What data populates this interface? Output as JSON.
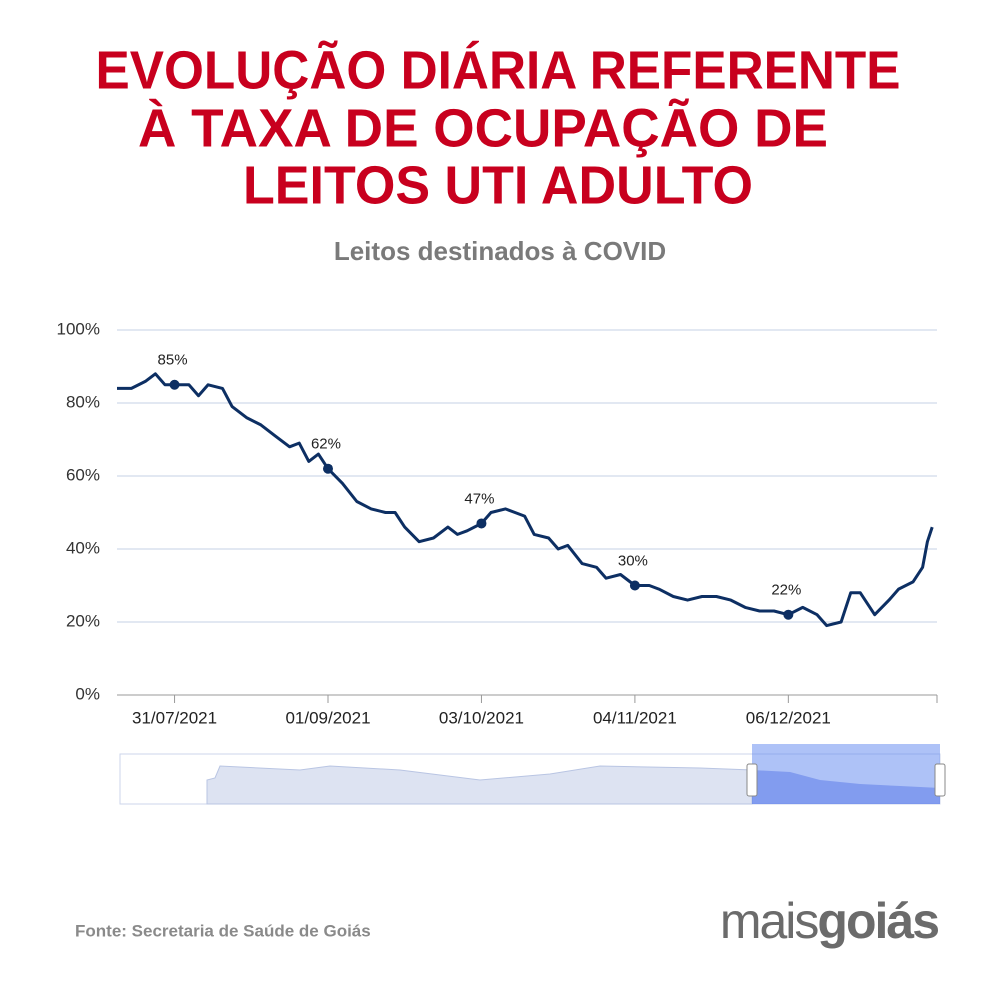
{
  "chart_data": {
    "type": "line",
    "title": [
      "EVOLUÇÃO DIÁRIA REFERENTE",
      "À TAXA DE OCUPAÇÃO DE",
      "LEITOS UTI ADULTO"
    ],
    "subtitle": "Leitos destinados à COVID",
    "color": "#0d2f63",
    "x": [
      "19/07/2021",
      "22/07/2021",
      "25/07/2021",
      "27/07/2021",
      "29/07/2021",
      "31/07/2021",
      "03/08/2021",
      "05/08/2021",
      "07/08/2021",
      "10/08/2021",
      "12/08/2021",
      "15/08/2021",
      "18/08/2021",
      "21/08/2021",
      "24/08/2021",
      "26/08/2021",
      "28/08/2021",
      "30/08/2021",
      "01/09/2021",
      "04/09/2021",
      "07/09/2021",
      "10/09/2021",
      "13/09/2021",
      "15/09/2021",
      "17/09/2021",
      "20/09/2021",
      "23/09/2021",
      "26/09/2021",
      "28/09/2021",
      "30/09/2021",
      "03/10/2021",
      "05/10/2021",
      "08/10/2021",
      "10/10/2021",
      "12/10/2021",
      "14/10/2021",
      "17/10/2021",
      "19/10/2021",
      "21/10/2021",
      "24/10/2021",
      "27/10/2021",
      "29/10/2021",
      "01/11/2021",
      "04/11/2021",
      "07/11/2021",
      "09/11/2021",
      "12/11/2021",
      "15/11/2021",
      "18/11/2021",
      "21/11/2021",
      "24/11/2021",
      "27/11/2021",
      "30/11/2021",
      "03/12/2021",
      "06/12/2021",
      "09/12/2021",
      "12/12/2021",
      "14/12/2021",
      "17/12/2021",
      "19/12/2021",
      "21/12/2021",
      "24/12/2021",
      "27/12/2021",
      "29/12/2021",
      "01/01/2022",
      "03/01/2022",
      "04/01/2022",
      "05/01/2022"
    ],
    "values": [
      84,
      84,
      86,
      88,
      85,
      85,
      85,
      82,
      85,
      84,
      79,
      76,
      74,
      71,
      68,
      69,
      64,
      66,
      62,
      58,
      53,
      51,
      50,
      50,
      46,
      42,
      43,
      46,
      44,
      45,
      47,
      50,
      51,
      50,
      49,
      44,
      43,
      40,
      41,
      36,
      35,
      32,
      33,
      30,
      30,
      29,
      27,
      26,
      27,
      27,
      26,
      24,
      23,
      23,
      22,
      24,
      22,
      19,
      20,
      28,
      28,
      22,
      26,
      29,
      31,
      35,
      42,
      46
    ],
    "annotations": [
      {
        "x": "31/07/2021",
        "value": 85,
        "label": "85%"
      },
      {
        "x": "01/09/2021",
        "value": 62,
        "label": "62%"
      },
      {
        "x": "03/10/2021",
        "value": 47,
        "label": "47%"
      },
      {
        "x": "04/11/2021",
        "value": 30,
        "label": "30%"
      },
      {
        "x": "06/12/2021",
        "value": 22,
        "label": "22%"
      }
    ],
    "xlim": [
      "19/07/2021",
      "06/01/2022"
    ],
    "xticks": [
      "31/07/2021",
      "01/09/2021",
      "03/10/2021",
      "04/11/2021",
      "06/12/2021"
    ],
    "ylim": [
      0,
      100
    ],
    "yticks": [
      {
        "value": 0,
        "label": "0%"
      },
      {
        "value": 20,
        "label": "20%"
      },
      {
        "value": 40,
        "label": "40%"
      },
      {
        "value": 60,
        "label": "60%"
      },
      {
        "value": 80,
        "label": "80%"
      },
      {
        "value": 100,
        "label": "100%"
      }
    ],
    "grid": true,
    "source": "Fonte: Secretaria de Saúde de Goiás"
  },
  "logo": [
    "mais",
    "goiás"
  ]
}
